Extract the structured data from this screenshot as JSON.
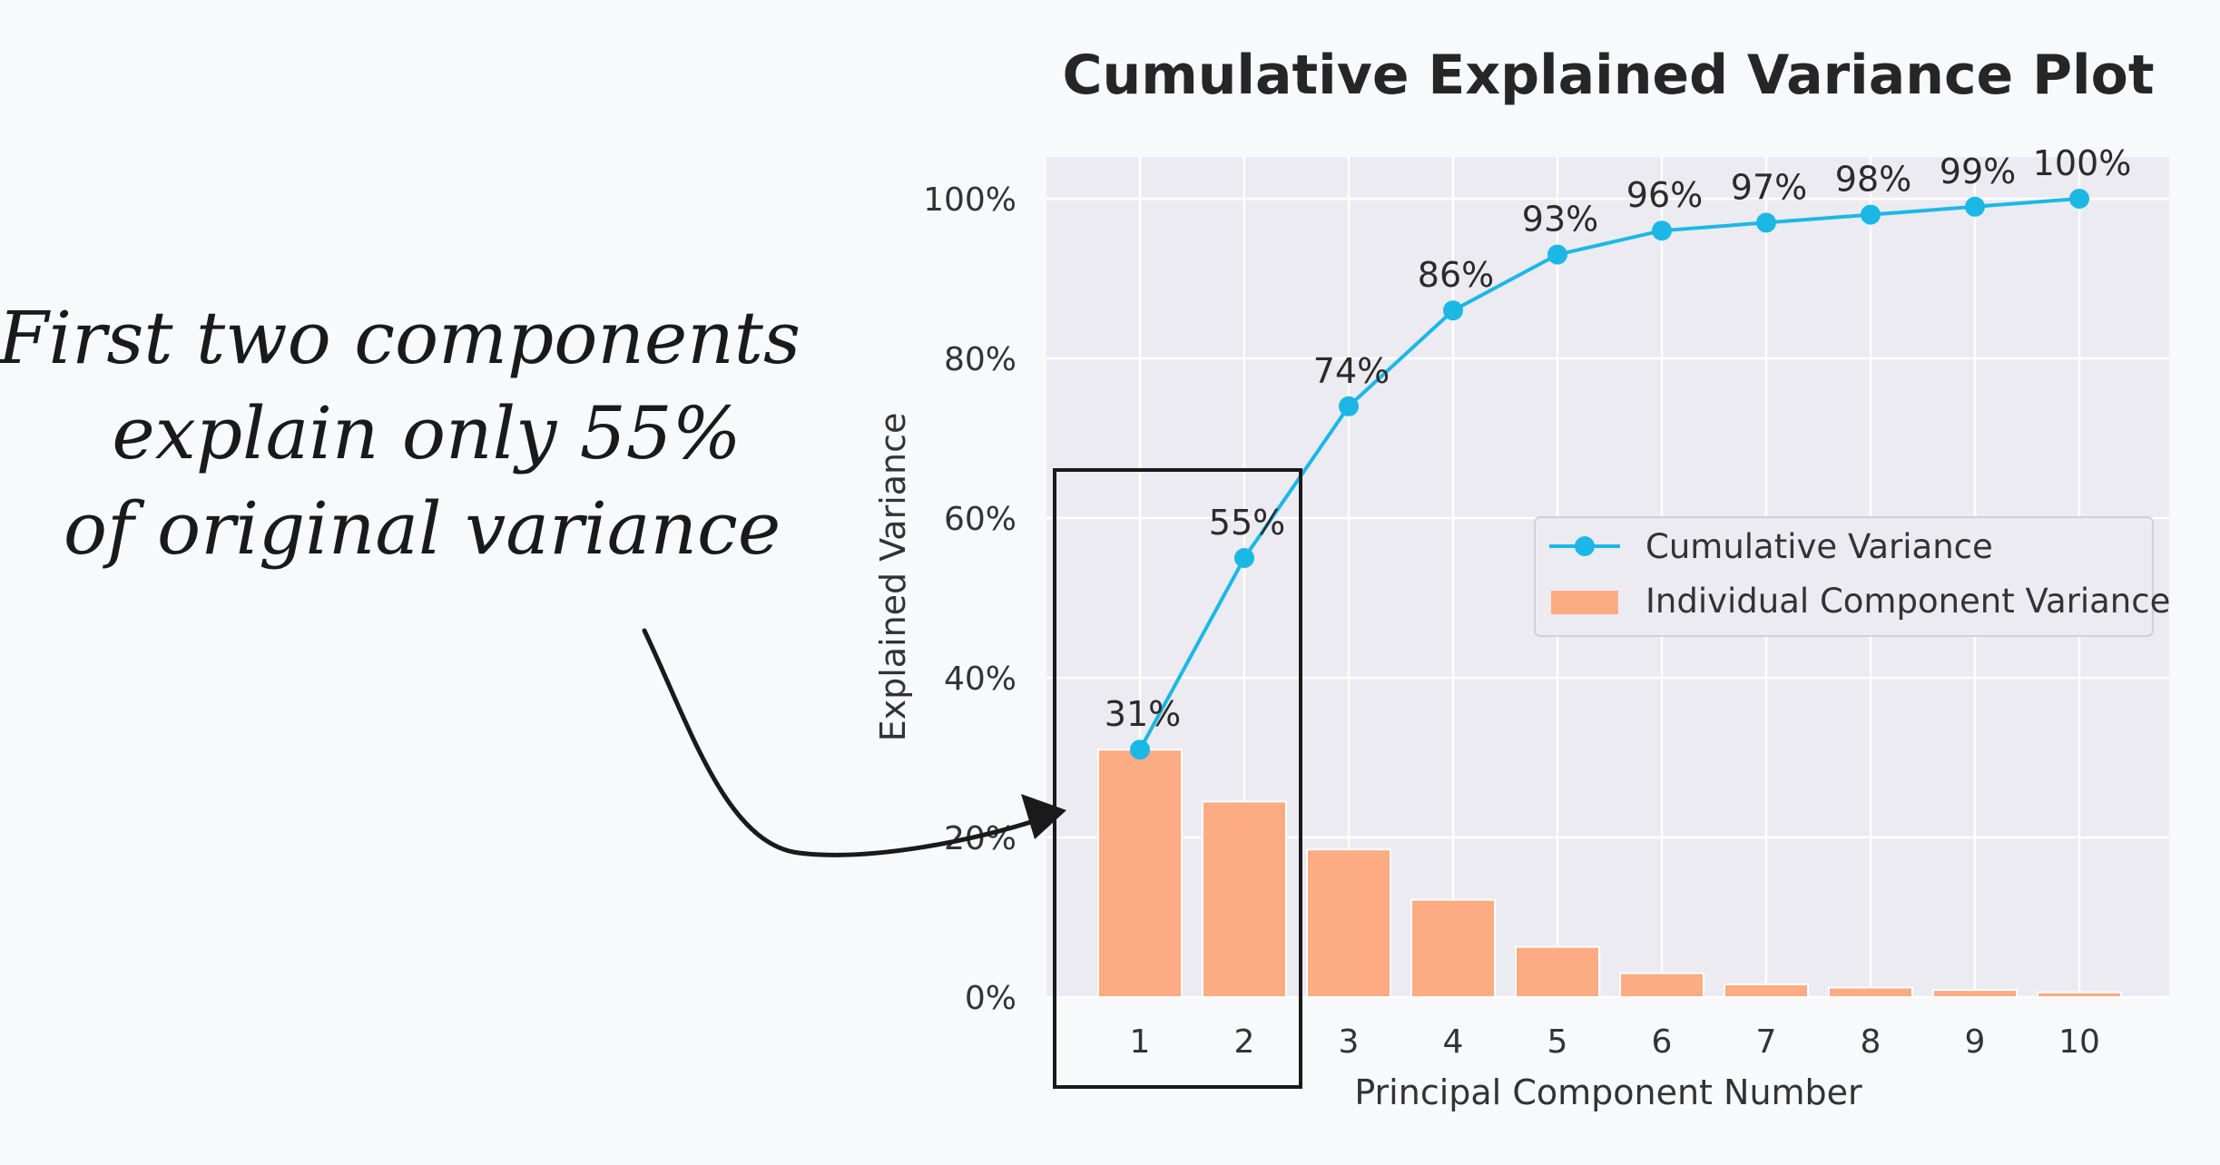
{
  "annotation": {
    "lines": [
      "First two components",
      "explain only 55%",
      "of original variance"
    ]
  },
  "colors": {
    "bar": "#fdab83",
    "line": "#1bb8e6",
    "plot_bg": "#ebebf1",
    "grid": "#ffffff",
    "highlight_box": "#1a1a1a"
  },
  "chart_data": {
    "type": "bar",
    "title": "Cumulative Explained Variance Plot",
    "xlabel": "Principal Component Number",
    "ylabel": "Explained Variance",
    "categories": [
      "1",
      "2",
      "3",
      "4",
      "5",
      "6",
      "7",
      "8",
      "9",
      "10"
    ],
    "ylim": [
      0,
      1.05
    ],
    "yticks": [
      0,
      0.2,
      0.4,
      0.6,
      0.8,
      1.0
    ],
    "ytick_labels": [
      "0%",
      "20%",
      "40%",
      "60%",
      "80%",
      "100%"
    ],
    "grid": true,
    "legend_position": "center-right",
    "series": [
      {
        "name": "Cumulative Variance",
        "type": "line",
        "values": [
          0.31,
          0.55,
          0.74,
          0.86,
          0.93,
          0.96,
          0.97,
          0.98,
          0.99,
          1.0
        ],
        "labels": [
          "31%",
          "55%",
          "74%",
          "86%",
          "93%",
          "96%",
          "97%",
          "98%",
          "99%",
          "100%"
        ]
      },
      {
        "name": "Individual Component Variance",
        "type": "bar",
        "values": [
          0.31,
          0.245,
          0.185,
          0.122,
          0.063,
          0.03,
          0.016,
          0.012,
          0.009,
          0.006
        ]
      }
    ],
    "highlighted_categories": [
      "1",
      "2"
    ]
  }
}
